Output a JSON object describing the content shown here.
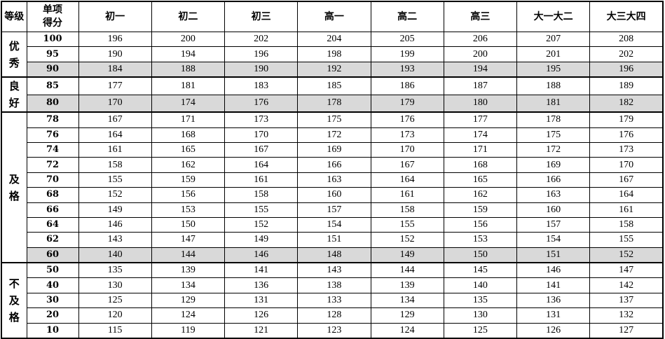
{
  "header": {
    "grade": "等级",
    "score": "单项得分",
    "columns": [
      "初一",
      "初二",
      "初三",
      "高一",
      "高二",
      "高三",
      "大一大二",
      "大三大四"
    ]
  },
  "shade_color": "#d9d9d9",
  "groups": [
    {
      "label": "优秀",
      "rows": [
        {
          "score": "100",
          "values": [
            "196",
            "200",
            "202",
            "204",
            "205",
            "206",
            "207",
            "208"
          ]
        },
        {
          "score": "95",
          "values": [
            "190",
            "194",
            "196",
            "198",
            "199",
            "200",
            "201",
            "202"
          ]
        },
        {
          "score": "90",
          "values": [
            "184",
            "188",
            "190",
            "192",
            "193",
            "194",
            "195",
            "196"
          ],
          "shaded": true
        }
      ]
    },
    {
      "label": "良好",
      "rows": [
        {
          "score": "85",
          "values": [
            "177",
            "181",
            "183",
            "185",
            "186",
            "187",
            "188",
            "189"
          ]
        },
        {
          "score": "80",
          "values": [
            "170",
            "174",
            "176",
            "178",
            "179",
            "180",
            "181",
            "182"
          ],
          "shaded": true
        }
      ]
    },
    {
      "label": "及格",
      "rows": [
        {
          "score": "78",
          "values": [
            "167",
            "171",
            "173",
            "175",
            "176",
            "177",
            "178",
            "179"
          ]
        },
        {
          "score": "76",
          "values": [
            "164",
            "168",
            "170",
            "172",
            "173",
            "174",
            "175",
            "176"
          ]
        },
        {
          "score": "74",
          "values": [
            "161",
            "165",
            "167",
            "169",
            "170",
            "171",
            "172",
            "173"
          ]
        },
        {
          "score": "72",
          "values": [
            "158",
            "162",
            "164",
            "166",
            "167",
            "168",
            "169",
            "170"
          ]
        },
        {
          "score": "70",
          "values": [
            "155",
            "159",
            "161",
            "163",
            "164",
            "165",
            "166",
            "167"
          ]
        },
        {
          "score": "68",
          "values": [
            "152",
            "156",
            "158",
            "160",
            "161",
            "162",
            "163",
            "164"
          ]
        },
        {
          "score": "66",
          "values": [
            "149",
            "153",
            "155",
            "157",
            "158",
            "159",
            "160",
            "161"
          ]
        },
        {
          "score": "64",
          "values": [
            "146",
            "150",
            "152",
            "154",
            "155",
            "156",
            "157",
            "158"
          ]
        },
        {
          "score": "62",
          "values": [
            "143",
            "147",
            "149",
            "151",
            "152",
            "153",
            "154",
            "155"
          ]
        },
        {
          "score": "60",
          "values": [
            "140",
            "144",
            "146",
            "148",
            "149",
            "150",
            "151",
            "152"
          ],
          "shaded": true
        }
      ]
    },
    {
      "label": "不及格",
      "rows": [
        {
          "score": "50",
          "values": [
            "135",
            "139",
            "141",
            "143",
            "144",
            "145",
            "146",
            "147"
          ]
        },
        {
          "score": "40",
          "values": [
            "130",
            "134",
            "136",
            "138",
            "139",
            "140",
            "141",
            "142"
          ]
        },
        {
          "score": "30",
          "values": [
            "125",
            "129",
            "131",
            "133",
            "134",
            "135",
            "136",
            "137"
          ]
        },
        {
          "score": "20",
          "values": [
            "120",
            "124",
            "126",
            "128",
            "129",
            "130",
            "131",
            "132"
          ]
        },
        {
          "score": "10",
          "values": [
            "115",
            "119",
            "121",
            "123",
            "124",
            "125",
            "126",
            "127"
          ]
        }
      ]
    }
  ]
}
